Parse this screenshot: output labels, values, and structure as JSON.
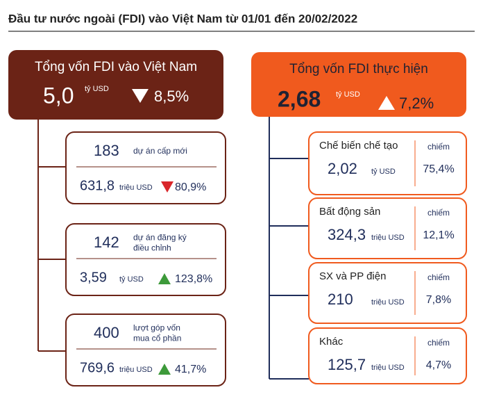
{
  "title": "Đầu tư nước ngoài (FDI) vào Việt Nam từ 01/01 đến 20/02/2022",
  "left": {
    "header": {
      "label": "Tổng vốn FDI vào Việt Nam",
      "value": "5,0",
      "unit": "tỷ USD",
      "change": "8,5%"
    },
    "items": [
      {
        "count": "183",
        "desc": [
          "dự án cấp mới"
        ],
        "value": "631,8",
        "unit": "triệu USD",
        "change": "80,9%"
      },
      {
        "count": "142",
        "desc": [
          "dự án đăng ký",
          "điều chỉnh"
        ],
        "value": "3,59",
        "unit": "tỷ USD",
        "change": "123,8%"
      },
      {
        "count": "400",
        "desc": [
          "lượt góp vốn",
          "mua cổ phần"
        ],
        "value": "769,6",
        "unit": "triệu USD",
        "change": "41,7%"
      }
    ]
  },
  "right": {
    "header": {
      "label": "Tổng vốn FDI thực hiện",
      "value": "2,68",
      "unit": "tỷ USD",
      "change": "7,2%"
    },
    "items": [
      {
        "label": "Chế biến chế tạo",
        "value": "2,02",
        "unit": "tỷ USD",
        "share_label": "chiếm",
        "share": "75,4%"
      },
      {
        "label": "Bất động sản",
        "value": "324,3",
        "unit": "triệu USD",
        "share_label": "chiếm",
        "share": "12,1%"
      },
      {
        "label": "SX và PP điện",
        "value": "210",
        "unit": "triệu USD",
        "share_label": "chiếm",
        "share": "7,8%"
      },
      {
        "label": "Khác",
        "value": "125,7",
        "unit": "triệu USD",
        "share_label": "chiếm",
        "share": "4,7%"
      }
    ]
  }
}
